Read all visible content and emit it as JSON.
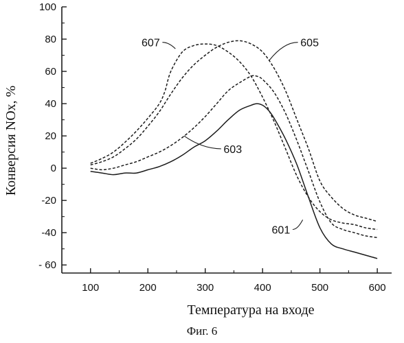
{
  "figure_caption": "Фиг. 6",
  "chart_data": {
    "type": "line",
    "xlabel": "Температура на входе",
    "ylabel": "Конверсия NOx, %",
    "xlim": [
      50,
      625
    ],
    "ylim": [
      -65,
      100
    ],
    "x_ticks": [
      100,
      200,
      300,
      400,
      500,
      600
    ],
    "y_ticks": [
      100,
      80,
      60,
      40,
      20,
      0,
      -20,
      -40,
      -60
    ],
    "x_tick_labels": [
      "100",
      "200",
      "300",
      "400",
      "500",
      "600"
    ],
    "y_tick_labels": [
      "100",
      "80",
      "60",
      "40",
      "20",
      "0",
      "-20",
      "-40",
      "- 60"
    ],
    "line_color": "#1a1a1a",
    "series": [
      {
        "name": "601",
        "style": "solid",
        "x": [
          100,
          120,
          140,
          160,
          180,
          200,
          220,
          240,
          260,
          280,
          300,
          320,
          340,
          360,
          380,
          390,
          400,
          410,
          420,
          440,
          460,
          480,
          500,
          520,
          540,
          560,
          580,
          600
        ],
        "y": [
          -2,
          -3,
          -4,
          -3,
          -3,
          -1,
          1,
          4,
          8,
          13,
          17,
          23,
          30,
          36,
          39,
          40,
          39,
          36,
          31,
          18,
          2,
          -18,
          -37,
          -47,
          -50,
          -52,
          -54,
          -56
        ]
      },
      {
        "name": "603",
        "style": "dashed",
        "x": [
          100,
          120,
          140,
          160,
          180,
          200,
          220,
          240,
          260,
          280,
          300,
          320,
          340,
          360,
          380,
          390,
          400,
          420,
          440,
          460,
          480,
          500,
          520,
          540,
          560,
          580,
          600
        ],
        "y": [
          0,
          -1,
          0,
          2,
          4,
          7,
          10,
          14,
          19,
          25,
          32,
          40,
          48,
          53,
          57,
          57,
          55,
          47,
          34,
          17,
          -2,
          -21,
          -34,
          -38,
          -40,
          -42,
          -43
        ]
      },
      {
        "name": "605",
        "style": "dashed",
        "x": [
          100,
          120,
          140,
          160,
          180,
          200,
          220,
          240,
          260,
          280,
          300,
          320,
          340,
          360,
          380,
          400,
          420,
          440,
          460,
          480,
          500,
          520,
          540,
          560,
          580,
          600
        ],
        "y": [
          2,
          4,
          7,
          12,
          18,
          26,
          35,
          46,
          56,
          64,
          70,
          75,
          78,
          79,
          77,
          72,
          62,
          48,
          30,
          12,
          -8,
          -18,
          -25,
          -29,
          -31,
          -33
        ]
      },
      {
        "name": "607",
        "style": "dashed",
        "x": [
          100,
          120,
          140,
          160,
          180,
          200,
          220,
          230,
          240,
          260,
          280,
          300,
          320,
          340,
          360,
          380,
          400,
          420,
          440,
          460,
          480,
          500,
          520,
          540,
          560,
          580,
          600
        ],
        "y": [
          3,
          6,
          10,
          16,
          23,
          31,
          40,
          48,
          60,
          72,
          76,
          77,
          76,
          72,
          66,
          57,
          44,
          29,
          12,
          -5,
          -18,
          -27,
          -32,
          -34,
          -35,
          -37,
          -38
        ]
      }
    ],
    "annotations": [
      {
        "text": "607",
        "series": "607",
        "label_xy": [
          205,
          78
        ],
        "point_xy": [
          248,
          74
        ]
      },
      {
        "text": "605",
        "series": "605",
        "label_xy": [
          482,
          78
        ],
        "point_xy": [
          412,
          67
        ]
      },
      {
        "text": "603",
        "series": "603",
        "label_xy": [
          348,
          12
        ],
        "point_xy": [
          263,
          20
        ]
      },
      {
        "text": "601",
        "series": "601",
        "label_xy": [
          432,
          -38
        ],
        "point_xy": [
          470,
          -32
        ]
      }
    ],
    "grid": false,
    "legend": "none"
  }
}
